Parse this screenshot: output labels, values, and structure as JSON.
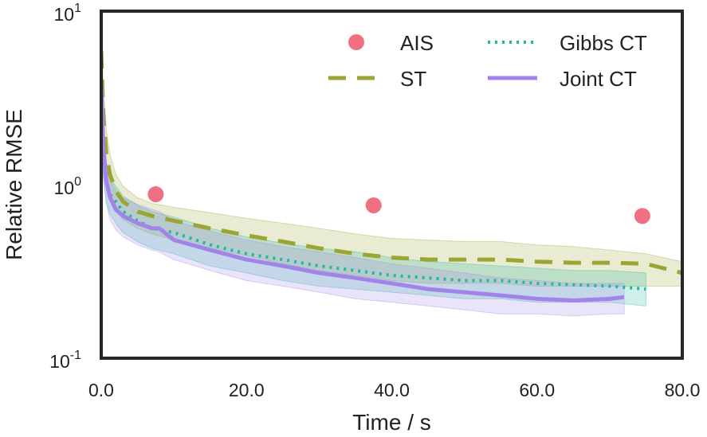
{
  "chart_data": {
    "type": "line",
    "xlabel": "Time / s",
    "ylabel": "Relative RMSE",
    "yscale": "log",
    "xlim": [
      0,
      80
    ],
    "ylim": [
      0.1,
      10
    ],
    "xticks": [
      {
        "value": 0,
        "label": "0.0"
      },
      {
        "value": 20,
        "label": "20.0"
      },
      {
        "value": 40,
        "label": "40.0"
      },
      {
        "value": 60,
        "label": "60.0"
      },
      {
        "value": 80,
        "label": "80.0"
      }
    ],
    "yticks": [
      {
        "value": 10,
        "base": "10",
        "exp": "1"
      },
      {
        "value": 1,
        "base": "10",
        "exp": "0"
      },
      {
        "value": 0.1,
        "base": "10",
        "exp": "-1"
      }
    ],
    "legend_position": "top-right",
    "series": [
      {
        "name": "AIS",
        "style": "markers",
        "color": "#f07082",
        "points": [
          {
            "x": 7.5,
            "y": 0.88,
            "err_lo": 0.8,
            "err_hi": 0.98
          },
          {
            "x": 37.5,
            "y": 0.76,
            "err_lo": 0.7,
            "err_hi": 0.83
          },
          {
            "x": 74.5,
            "y": 0.66,
            "err_lo": 0.6,
            "err_hi": 0.73
          }
        ]
      },
      {
        "name": "ST",
        "style": "dashed",
        "color": "#9aa631",
        "x": [
          0,
          0.3,
          0.7,
          1.2,
          2,
          3,
          5,
          7,
          10,
          15,
          20,
          25,
          30,
          35,
          40,
          45,
          50,
          55,
          60,
          65,
          70,
          75,
          80
        ],
        "y": [
          5.9,
          2.5,
          1.5,
          1.15,
          0.92,
          0.8,
          0.7,
          0.66,
          0.62,
          0.56,
          0.51,
          0.47,
          0.43,
          0.4,
          0.38,
          0.37,
          0.37,
          0.37,
          0.36,
          0.355,
          0.355,
          0.35,
          0.31
        ],
        "lower": [
          3.5,
          1.6,
          1.05,
          0.85,
          0.73,
          0.63,
          0.56,
          0.52,
          0.48,
          0.43,
          0.39,
          0.35,
          0.32,
          0.3,
          0.28,
          0.27,
          0.27,
          0.27,
          0.26,
          0.26,
          0.26,
          0.26,
          0.26
        ],
        "upper": [
          8.0,
          3.6,
          2.1,
          1.5,
          1.15,
          0.98,
          0.84,
          0.78,
          0.74,
          0.69,
          0.64,
          0.6,
          0.56,
          0.52,
          0.49,
          0.48,
          0.47,
          0.47,
          0.45,
          0.44,
          0.42,
          0.4,
          0.36
        ]
      },
      {
        "name": "Gibbs CT",
        "style": "dotted",
        "color": "#26b7a1",
        "x": [
          0,
          0.3,
          0.7,
          1.2,
          2,
          3,
          5,
          7,
          10,
          15,
          20,
          25,
          30,
          35,
          40,
          45,
          50,
          55,
          60,
          65,
          70,
          75
        ],
        "y": [
          3.6,
          1.6,
          1.05,
          0.88,
          0.8,
          0.7,
          0.62,
          0.56,
          0.53,
          0.45,
          0.4,
          0.37,
          0.34,
          0.32,
          0.3,
          0.29,
          0.28,
          0.28,
          0.27,
          0.265,
          0.26,
          0.25
        ],
        "lower": [
          2.2,
          1.1,
          0.8,
          0.68,
          0.6,
          0.53,
          0.47,
          0.43,
          0.4,
          0.34,
          0.31,
          0.28,
          0.26,
          0.25,
          0.24,
          0.23,
          0.22,
          0.22,
          0.21,
          0.21,
          0.21,
          0.2
        ],
        "upper": [
          5.2,
          2.3,
          1.35,
          1.1,
          0.98,
          0.86,
          0.76,
          0.7,
          0.65,
          0.56,
          0.5,
          0.46,
          0.43,
          0.41,
          0.38,
          0.36,
          0.35,
          0.34,
          0.33,
          0.32,
          0.32,
          0.31
        ]
      },
      {
        "name": "Joint CT",
        "style": "solid",
        "color": "#a183ea",
        "x": [
          0,
          0.3,
          0.7,
          1.2,
          2,
          3,
          5,
          7,
          8,
          10,
          15,
          20,
          25,
          30,
          35,
          40,
          45,
          50,
          55,
          60,
          65,
          70,
          72
        ],
        "y": [
          3.8,
          1.6,
          1.05,
          0.85,
          0.72,
          0.66,
          0.6,
          0.56,
          0.56,
          0.48,
          0.42,
          0.37,
          0.34,
          0.31,
          0.29,
          0.27,
          0.25,
          0.24,
          0.23,
          0.22,
          0.215,
          0.22,
          0.225
        ],
        "lower": [
          2.3,
          1.1,
          0.78,
          0.63,
          0.55,
          0.5,
          0.45,
          0.42,
          0.41,
          0.37,
          0.32,
          0.28,
          0.26,
          0.24,
          0.22,
          0.21,
          0.2,
          0.19,
          0.18,
          0.18,
          0.175,
          0.18,
          0.18
        ],
        "upper": [
          5.5,
          2.3,
          1.35,
          1.08,
          0.92,
          0.84,
          0.77,
          0.72,
          0.7,
          0.62,
          0.54,
          0.48,
          0.44,
          0.41,
          0.38,
          0.35,
          0.33,
          0.31,
          0.29,
          0.28,
          0.27,
          0.27,
          0.27
        ]
      }
    ]
  },
  "style": {
    "band_opacity": 0.22,
    "frame_color": "#262626"
  }
}
